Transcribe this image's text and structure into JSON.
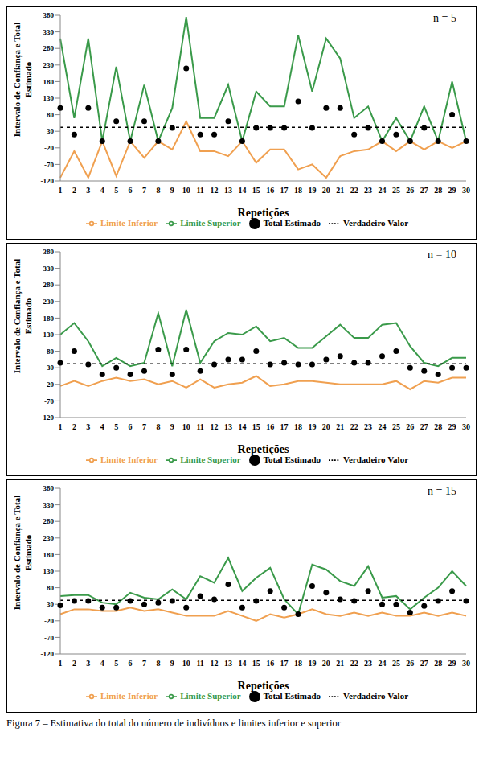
{
  "caption": "Figura 7 – Estimativa do total do número de indivíduos e limites inferior e superior",
  "chart_data": [
    {
      "type": "line",
      "title": "n = 5",
      "x_label": "Repetições",
      "y_label": "Intervalo de Confiança e Total Estimado",
      "categories": [
        "1",
        "2",
        "3",
        "4",
        "5",
        "6",
        "7",
        "8",
        "9",
        "10",
        "11",
        "12",
        "13",
        "14",
        "15",
        "16",
        "17",
        "18",
        "19",
        "20",
        "21",
        "22",
        "23",
        "24",
        "25",
        "26",
        "27",
        "28",
        "29",
        "30"
      ],
      "ylim": [
        -120,
        380
      ],
      "yticks": [
        -120,
        -70,
        -20,
        30,
        80,
        130,
        180,
        230,
        280,
        330,
        380
      ],
      "grid": false,
      "legend": "bottom",
      "series": [
        {
          "name": "Total Estimado",
          "type": "scatter",
          "marker": "circle",
          "color": "#000000",
          "values": [
            100,
            20,
            100,
            0,
            60,
            0,
            60,
            0,
            40,
            220,
            20,
            20,
            60,
            0,
            40,
            40,
            40,
            120,
            40,
            100,
            100,
            20,
            40,
            0,
            20,
            0,
            40,
            0,
            80,
            0
          ]
        },
        {
          "name": "Limite Inferior",
          "type": "line",
          "line_style": "solid",
          "color": "#f0a050",
          "values": [
            -110,
            -30,
            -110,
            0,
            -105,
            0,
            -50,
            0,
            -25,
            60,
            -30,
            -30,
            -45,
            0,
            -65,
            -25,
            -25,
            -85,
            -70,
            -110,
            -45,
            -30,
            -25,
            0,
            -30,
            0,
            -25,
            0,
            -20,
            0
          ]
        },
        {
          "name": "Limite Superior",
          "type": "line",
          "line_style": "solid",
          "color": "#3a9a4a",
          "values": [
            310,
            70,
            310,
            0,
            225,
            0,
            170,
            0,
            100,
            375,
            70,
            70,
            170,
            0,
            150,
            105,
            105,
            320,
            150,
            310,
            250,
            70,
            105,
            0,
            70,
            0,
            105,
            0,
            180,
            0
          ]
        },
        {
          "name": "Verdadeiro Valor",
          "type": "line",
          "line_style": "dashed",
          "color": "#000000",
          "values": [
            42,
            42,
            42,
            42,
            42,
            42,
            42,
            42,
            42,
            42,
            42,
            42,
            42,
            42,
            42,
            42,
            42,
            42,
            42,
            42,
            42,
            42,
            42,
            42,
            42,
            42,
            42,
            42,
            42,
            42
          ]
        }
      ]
    },
    {
      "type": "line",
      "title": "n = 10",
      "x_label": "Repetições",
      "y_label": "Intervalo de Confiança e Total Estimado",
      "categories": [
        "1",
        "2",
        "3",
        "4",
        "5",
        "6",
        "7",
        "8",
        "9",
        "10",
        "11",
        "12",
        "13",
        "14",
        "15",
        "16",
        "17",
        "18",
        "19",
        "20",
        "21",
        "22",
        "23",
        "24",
        "25",
        "26",
        "27",
        "28",
        "29",
        "30"
      ],
      "ylim": [
        -120,
        380
      ],
      "yticks": [
        -120,
        -70,
        -20,
        30,
        80,
        130,
        180,
        230,
        280,
        330,
        380
      ],
      "grid": false,
      "legend": "bottom",
      "series": [
        {
          "name": "Total Estimado",
          "type": "scatter",
          "marker": "circle",
          "color": "#000000",
          "values": [
            45,
            80,
            40,
            10,
            30,
            10,
            20,
            85,
            10,
            85,
            20,
            40,
            55,
            55,
            80,
            40,
            45,
            40,
            40,
            55,
            65,
            45,
            45,
            65,
            80,
            30,
            20,
            10,
            30,
            30
          ]
        },
        {
          "name": "Limite Inferior",
          "type": "line",
          "line_style": "solid",
          "color": "#f0a050",
          "values": [
            -25,
            -10,
            -25,
            -10,
            0,
            -10,
            -5,
            -20,
            -10,
            -30,
            -5,
            -30,
            -20,
            -15,
            5,
            -25,
            -20,
            -10,
            -10,
            -15,
            -20,
            -20,
            -20,
            -20,
            -10,
            -35,
            -10,
            -15,
            0,
            0
          ]
        },
        {
          "name": "Limite Superior",
          "type": "line",
          "line_style": "solid",
          "color": "#3a9a4a",
          "values": [
            130,
            165,
            110,
            35,
            60,
            35,
            45,
            195,
            35,
            205,
            45,
            110,
            135,
            130,
            155,
            110,
            120,
            90,
            90,
            125,
            160,
            120,
            120,
            160,
            165,
            95,
            45,
            35,
            60,
            60
          ]
        },
        {
          "name": "Verdadeiro Valor",
          "type": "line",
          "line_style": "dashed",
          "color": "#000000",
          "values": [
            42,
            42,
            42,
            42,
            42,
            42,
            42,
            42,
            42,
            42,
            42,
            42,
            42,
            42,
            42,
            42,
            42,
            42,
            42,
            42,
            42,
            42,
            42,
            42,
            42,
            42,
            42,
            42,
            42,
            42
          ]
        }
      ]
    },
    {
      "type": "line",
      "title": "n = 15",
      "x_label": "Repetições",
      "y_label": "Intervalo de Confiança e Total Estimado",
      "categories": [
        "1",
        "2",
        "3",
        "4",
        "5",
        "6",
        "7",
        "8",
        "9",
        "10",
        "11",
        "12",
        "13",
        "14",
        "15",
        "16",
        "17",
        "18",
        "19",
        "20",
        "21",
        "22",
        "23",
        "24",
        "25",
        "26",
        "27",
        "28",
        "29",
        "30"
      ],
      "ylim": [
        -120,
        380
      ],
      "yticks": [
        -120,
        -70,
        -20,
        30,
        80,
        130,
        180,
        230,
        280,
        330,
        380
      ],
      "grid": false,
      "legend": "bottom",
      "series": [
        {
          "name": "Total Estimado",
          "type": "scatter",
          "marker": "circle",
          "color": "#000000",
          "values": [
            27,
            40,
            40,
            20,
            20,
            40,
            30,
            35,
            40,
            20,
            55,
            45,
            90,
            20,
            40,
            70,
            20,
            0,
            85,
            65,
            45,
            40,
            70,
            30,
            30,
            5,
            25,
            40,
            70,
            40
          ]
        },
        {
          "name": "Limite Inferior",
          "type": "line",
          "line_style": "solid",
          "color": "#f0a050",
          "values": [
            0,
            15,
            15,
            10,
            10,
            20,
            10,
            15,
            5,
            -5,
            -5,
            -5,
            10,
            -5,
            -20,
            0,
            -10,
            0,
            15,
            0,
            -5,
            5,
            -5,
            5,
            -5,
            -5,
            5,
            -5,
            5,
            -5
          ]
        },
        {
          "name": "Limite Superior",
          "type": "line",
          "line_style": "solid",
          "color": "#3a9a4a",
          "values": [
            55,
            58,
            58,
            35,
            30,
            65,
            50,
            45,
            75,
            45,
            115,
            95,
            170,
            70,
            110,
            140,
            45,
            0,
            150,
            135,
            100,
            85,
            145,
            50,
            55,
            15,
            50,
            80,
            130,
            85
          ]
        },
        {
          "name": "Verdadeiro Valor",
          "type": "line",
          "line_style": "dashed",
          "color": "#000000",
          "values": [
            42,
            42,
            42,
            42,
            42,
            42,
            42,
            42,
            42,
            42,
            42,
            42,
            42,
            42,
            42,
            42,
            42,
            42,
            42,
            42,
            42,
            42,
            42,
            42,
            42,
            42,
            42,
            42,
            42,
            42
          ]
        }
      ]
    }
  ]
}
